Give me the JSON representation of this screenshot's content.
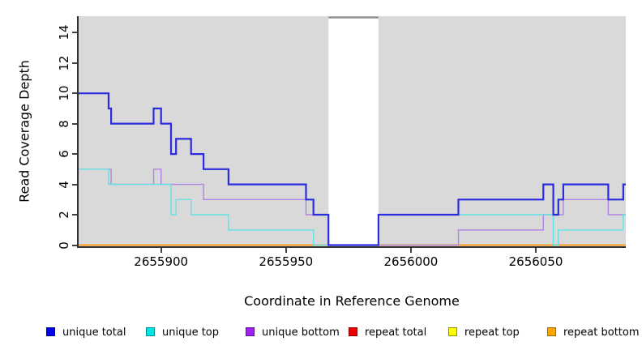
{
  "chart_data": {
    "type": "line",
    "subtype": "step",
    "title": "",
    "xlabel": "Coordinate in Reference Genome",
    "ylabel": "Read Coverage Depth",
    "xlim": [
      2655867,
      2656086
    ],
    "ylim": [
      0,
      15
    ],
    "x_ticks": [
      2655900,
      2655950,
      2656000,
      2656050
    ],
    "y_ticks": [
      0,
      2,
      4,
      6,
      8,
      10,
      12,
      14
    ],
    "grid": false,
    "panel_bg": "#d9d9d9",
    "legend_position": "bottom",
    "gap_region": {
      "x_start": 2655967,
      "x_end": 2655987,
      "fill": "#ffffff",
      "top_border": "#8f8f8f"
    },
    "draw_order": [
      "repeat total",
      "repeat top",
      "repeat bottom",
      "unique bottom",
      "unique top",
      "unique total"
    ],
    "series": [
      {
        "name": "unique total",
        "line_color": "#2b2bdf",
        "legend_fill": "#0000ee",
        "legend_border": "#000090",
        "line_width": 2.2,
        "start_value": 10,
        "steps": [
          [
            2655879,
            9
          ],
          [
            2655880,
            8
          ],
          [
            2655897,
            9
          ],
          [
            2655900,
            8
          ],
          [
            2655904,
            6
          ],
          [
            2655906,
            7
          ],
          [
            2655912,
            6
          ],
          [
            2655917,
            5
          ],
          [
            2655927,
            4
          ],
          [
            2655958,
            3
          ],
          [
            2655961,
            2
          ],
          [
            2655967,
            0
          ],
          [
            2655987,
            2
          ],
          [
            2656019,
            3
          ],
          [
            2656053,
            4
          ],
          [
            2656057,
            2
          ],
          [
            2656059,
            3
          ],
          [
            2656061,
            4
          ],
          [
            2656079,
            3
          ],
          [
            2656085,
            4
          ]
        ]
      },
      {
        "name": "unique top",
        "line_color": "#63e3e3",
        "legend_fill": "#00e5e5",
        "legend_border": "#008b8b",
        "line_width": 1.4,
        "start_value": 5,
        "steps": [
          [
            2655879,
            4
          ],
          [
            2655904,
            2
          ],
          [
            2655906,
            3
          ],
          [
            2655912,
            2
          ],
          [
            2655927,
            1
          ],
          [
            2655961,
            0
          ],
          [
            2655987,
            2
          ],
          [
            2656057,
            0
          ],
          [
            2656059,
            1
          ],
          [
            2656085,
            2
          ]
        ]
      },
      {
        "name": "unique bottom",
        "line_color": "#b183e3",
        "legend_fill": "#a020f0",
        "legend_border": "#600ca0",
        "line_width": 1.4,
        "start_value": 5,
        "steps": [
          [
            2655880,
            4
          ],
          [
            2655897,
            5
          ],
          [
            2655900,
            4
          ],
          [
            2655917,
            3
          ],
          [
            2655958,
            2
          ],
          [
            2655967,
            0
          ],
          [
            2656019,
            1
          ],
          [
            2656053,
            2
          ],
          [
            2656061,
            3
          ],
          [
            2656079,
            2
          ]
        ]
      },
      {
        "name": "repeat total",
        "line_color": "#dd2222",
        "legend_fill": "#ee0000",
        "legend_border": "#900000",
        "line_width": 1.4,
        "start_value": 0,
        "steps": []
      },
      {
        "name": "repeat top",
        "line_color": "#eeee22",
        "legend_fill": "#ffff00",
        "legend_border": "#909000",
        "line_width": 1.4,
        "start_value": 0,
        "steps": []
      },
      {
        "name": "repeat bottom",
        "line_color": "#ff9c1e",
        "legend_fill": "#ffa500",
        "legend_border": "#a06800",
        "line_width": 2,
        "start_value": 0,
        "steps": []
      }
    ]
  }
}
